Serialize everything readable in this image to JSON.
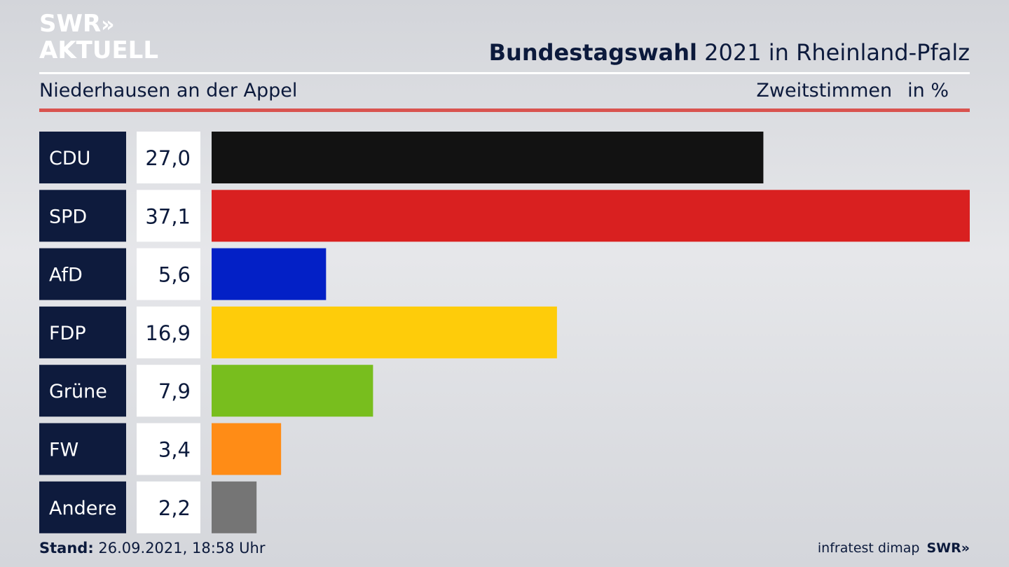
{
  "header": {
    "logo_line1": "SWR",
    "logo_chevrons": "»",
    "logo_line2": "AKTUELL",
    "title_bold": "Bundestagswahl",
    "title_rest": " 2021 in Rheinland-Pfalz",
    "subtitle": "Niederhausen an der Appel",
    "measure": "Zweitstimmen",
    "unit": "in %"
  },
  "chart_data": {
    "type": "bar",
    "orientation": "horizontal",
    "categories": [
      "CDU",
      "SPD",
      "AfD",
      "FDP",
      "Grüne",
      "FW",
      "Andere"
    ],
    "values": [
      27.0,
      37.1,
      5.6,
      16.9,
      7.9,
      3.4,
      2.2
    ],
    "value_labels": [
      "27,0",
      "37,1",
      "5,6",
      "16,9",
      "7,9",
      "3,4",
      "2,2"
    ],
    "colors": [
      "#121212",
      "#d92020",
      "#0320c6",
      "#fecc0a",
      "#78be1e",
      "#ff8c16",
      "#757575"
    ],
    "xlim": [
      0,
      37.1
    ],
    "grid": false,
    "legend": "none"
  },
  "footer": {
    "stand_label": "Stand:",
    "stand_value": " 26.09.2021, 18:58 Uhr",
    "source": "infratest dimap",
    "brand": "SWR»"
  }
}
